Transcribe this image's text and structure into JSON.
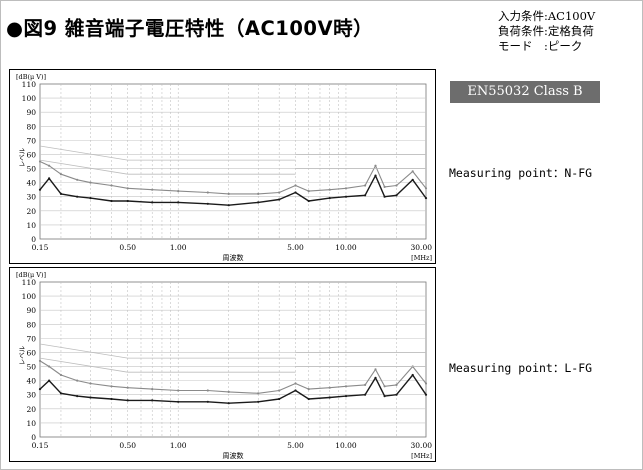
{
  "header": {
    "title": "●図9 雑音端子電圧特性（AC100V時）",
    "conditions": [
      "入力条件:AC100V",
      "負荷条件:定格負荷",
      "モード　:ピーク"
    ]
  },
  "limit_label": "EN55032 Class B",
  "panels": [
    {
      "measuring_point": "Measuring point：N-FG"
    },
    {
      "measuring_point": "Measuring point：L-FG"
    }
  ],
  "colors": {
    "title_badge_bg": "#6d6d6d",
    "trace_dark": "#1a1a1a",
    "trace_light": "#8a8a8a",
    "limit": "#bdbdbd"
  },
  "chart_data": [
    {
      "type": "line",
      "xscale": "log",
      "xlim": [
        0.15,
        30
      ],
      "ylim": [
        0,
        110
      ],
      "grid": true,
      "xlabel": "周波数",
      "xunit": "[MHz]",
      "yunit": "[dB(μ V)]",
      "ylabel": "レベル",
      "xticks": [
        "0.15",
        "0.50",
        "1.00",
        "5.00",
        "10.00",
        "30.00"
      ],
      "yticks": [
        "0",
        "10",
        "20",
        "30",
        "40",
        "50",
        "60",
        "70",
        "80",
        "90",
        "100",
        "110"
      ],
      "series": [
        {
          "x": [
            0.15,
            0.17,
            0.2,
            0.25,
            0.3,
            0.4,
            0.5,
            0.7,
            1.0,
            1.5,
            2.0,
            3.0,
            4.0,
            5.0,
            6.0,
            8.0,
            10.0,
            13.0,
            15.0,
            17.0,
            20.0,
            25.0,
            30.0
          ],
          "y": [
            55,
            52,
            46,
            42,
            40,
            38,
            36,
            35,
            34,
            33,
            32,
            32,
            33,
            38,
            34,
            35,
            36,
            38,
            52,
            37,
            38,
            48,
            36
          ]
        },
        {
          "x": [
            0.15,
            0.17,
            0.2,
            0.25,
            0.3,
            0.4,
            0.5,
            0.7,
            1.0,
            1.5,
            2.0,
            3.0,
            4.0,
            5.0,
            6.0,
            8.0,
            10.0,
            13.0,
            15.0,
            17.0,
            20.0,
            25.0,
            30.0
          ],
          "y": [
            35,
            43,
            32,
            30,
            29,
            27,
            27,
            26,
            26,
            25,
            24,
            26,
            28,
            33,
            27,
            29,
            30,
            31,
            45,
            30,
            31,
            42,
            29
          ]
        },
        {
          "x": [
            0.15,
            0.5
          ],
          "y": [
            66,
            56
          ]
        },
        {
          "x": [
            0.15,
            0.5
          ],
          "y": [
            56,
            46
          ]
        },
        {
          "x": [
            0.5,
            5.0
          ],
          "y": [
            56,
            56
          ]
        },
        {
          "x": [
            0.5,
            5.0
          ],
          "y": [
            46,
            46
          ]
        },
        {
          "x": [
            5.0,
            30.0
          ],
          "y": [
            60,
            60
          ]
        },
        {
          "x": [
            5.0,
            30.0
          ],
          "y": [
            50,
            50
          ]
        }
      ]
    },
    {
      "type": "line",
      "xscale": "log",
      "xlim": [
        0.15,
        30
      ],
      "ylim": [
        0,
        110
      ],
      "grid": true,
      "xlabel": "周波数",
      "xunit": "[MHz]",
      "yunit": "[dB(μ V)]",
      "ylabel": "レベル",
      "xticks": [
        "0.15",
        "0.50",
        "1.00",
        "5.00",
        "10.00",
        "30.00"
      ],
      "yticks": [
        "0",
        "10",
        "20",
        "30",
        "40",
        "50",
        "60",
        "70",
        "80",
        "90",
        "100",
        "110"
      ],
      "series": [
        {
          "x": [
            0.15,
            0.17,
            0.2,
            0.25,
            0.3,
            0.4,
            0.5,
            0.7,
            1.0,
            1.5,
            2.0,
            3.0,
            4.0,
            5.0,
            6.0,
            8.0,
            10.0,
            13.0,
            15.0,
            17.0,
            20.0,
            25.0,
            30.0
          ],
          "y": [
            54,
            50,
            44,
            40,
            38,
            36,
            35,
            34,
            33,
            33,
            32,
            31,
            33,
            38,
            34,
            35,
            36,
            37,
            48,
            36,
            37,
            50,
            38
          ]
        },
        {
          "x": [
            0.15,
            0.17,
            0.2,
            0.25,
            0.3,
            0.4,
            0.5,
            0.7,
            1.0,
            1.5,
            2.0,
            3.0,
            4.0,
            5.0,
            6.0,
            8.0,
            10.0,
            13.0,
            15.0,
            17.0,
            20.0,
            25.0,
            30.0
          ],
          "y": [
            34,
            40,
            31,
            29,
            28,
            27,
            26,
            26,
            25,
            25,
            24,
            25,
            27,
            33,
            27,
            28,
            29,
            30,
            42,
            29,
            30,
            44,
            30
          ]
        },
        {
          "x": [
            0.15,
            0.5
          ],
          "y": [
            66,
            56
          ]
        },
        {
          "x": [
            0.15,
            0.5
          ],
          "y": [
            56,
            46
          ]
        },
        {
          "x": [
            0.5,
            5.0
          ],
          "y": [
            56,
            56
          ]
        },
        {
          "x": [
            0.5,
            5.0
          ],
          "y": [
            46,
            46
          ]
        },
        {
          "x": [
            5.0,
            30.0
          ],
          "y": [
            60,
            60
          ]
        },
        {
          "x": [
            5.0,
            30.0
          ],
          "y": [
            50,
            50
          ]
        }
      ]
    }
  ]
}
